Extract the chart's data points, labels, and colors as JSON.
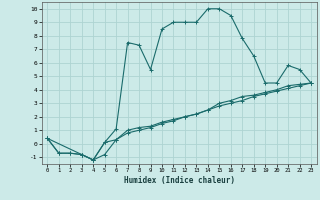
{
  "title": "",
  "xlabel": "Humidex (Indice chaleur)",
  "xlim": [
    -0.5,
    23.5
  ],
  "ylim": [
    -1.5,
    10.5
  ],
  "xticks": [
    0,
    1,
    2,
    3,
    4,
    5,
    6,
    7,
    8,
    9,
    10,
    11,
    12,
    13,
    14,
    15,
    16,
    17,
    18,
    19,
    20,
    21,
    22,
    23
  ],
  "yticks": [
    -1,
    0,
    1,
    2,
    3,
    4,
    5,
    6,
    7,
    8,
    9,
    10
  ],
  "bg_color": "#cceae8",
  "grid_color": "#aed4d2",
  "line_color": "#1a6b6b",
  "line1_x": [
    0,
    1,
    2,
    3,
    4,
    5,
    6,
    7,
    8,
    9,
    10,
    11,
    12,
    13,
    14,
    15,
    16,
    17,
    18,
    19,
    20,
    21,
    22,
    23
  ],
  "line1_y": [
    0.4,
    -0.7,
    -0.7,
    -0.8,
    -1.2,
    0.1,
    1.1,
    7.5,
    7.3,
    5.5,
    8.5,
    9.0,
    9.0,
    9.0,
    10.0,
    10.0,
    9.5,
    7.8,
    6.5,
    4.5,
    4.5,
    5.8,
    5.5,
    4.5
  ],
  "line2_x": [
    0,
    3,
    4,
    5,
    6,
    7,
    8,
    9,
    10,
    11,
    12,
    13,
    14,
    15,
    16,
    17,
    18,
    19,
    20,
    21,
    22,
    23
  ],
  "line2_y": [
    0.4,
    -0.8,
    -1.2,
    0.1,
    0.3,
    1.0,
    1.2,
    1.3,
    1.6,
    1.8,
    2.0,
    2.2,
    2.5,
    3.0,
    3.2,
    3.5,
    3.6,
    3.8,
    4.0,
    4.3,
    4.4,
    4.5
  ],
  "line3_x": [
    0,
    1,
    2,
    3,
    4,
    5,
    6,
    7,
    8,
    9,
    10,
    11,
    12,
    13,
    14,
    15,
    16,
    17,
    18,
    19,
    20,
    21,
    22,
    23
  ],
  "line3_y": [
    0.4,
    -0.7,
    -0.7,
    -0.8,
    -1.2,
    -0.8,
    0.3,
    0.8,
    1.0,
    1.2,
    1.5,
    1.7,
    2.0,
    2.2,
    2.5,
    2.8,
    3.0,
    3.2,
    3.5,
    3.7,
    3.9,
    4.1,
    4.3,
    4.5
  ]
}
